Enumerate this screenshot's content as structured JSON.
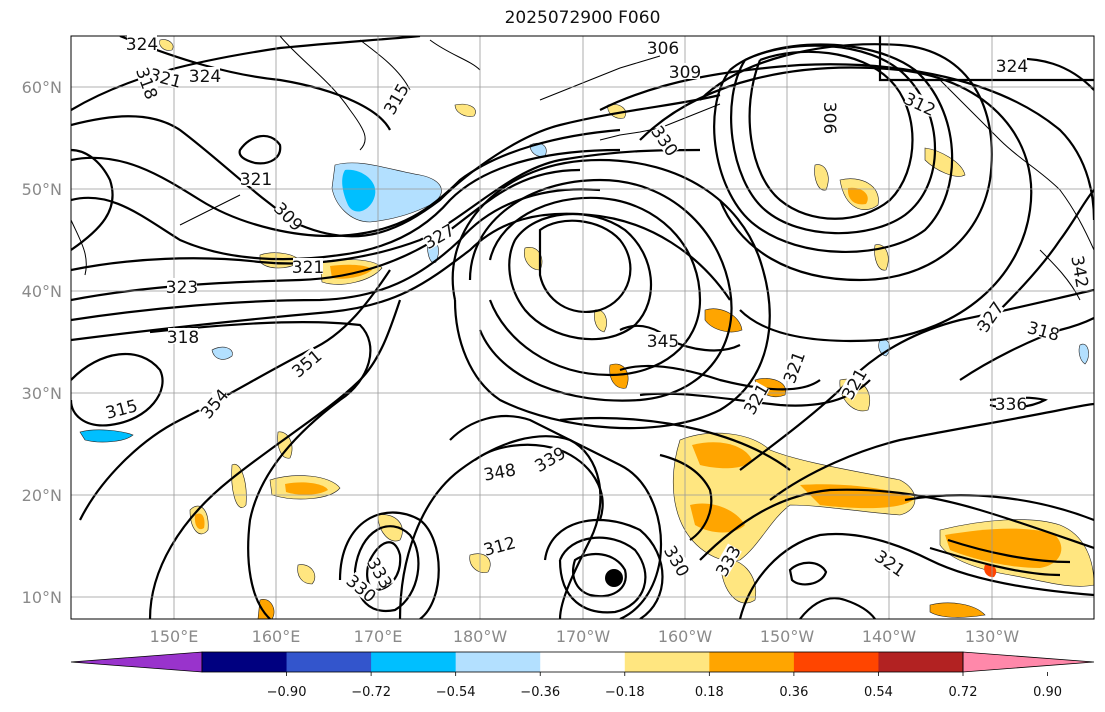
{
  "title": "2025072900 F060",
  "lat_ticks": [
    "10°N",
    "20°N",
    "30°N",
    "40°N",
    "50°N",
    "60°N"
  ],
  "lon_ticks": [
    "150°E",
    "160°E",
    "170°E",
    "180°W",
    "170°W",
    "160°W",
    "150°W",
    "140°W",
    "130°W"
  ],
  "colorbar": {
    "colors": [
      "#9933cc",
      "#000080",
      "#3355cc",
      "#00bfff",
      "#b3e0ff",
      "#ffffff",
      "#ffe680",
      "#ffa500",
      "#ff4500",
      "#b22222",
      "#ff88aa"
    ],
    "labels": [
      "−0.90",
      "−0.72",
      "−0.54",
      "−0.36",
      "−0.18",
      "0.18",
      "0.36",
      "0.54",
      "0.72",
      "0.90"
    ]
  },
  "contour_labels": [
    "324",
    "321",
    "324",
    "318",
    "315",
    "306",
    "309",
    "306",
    "312",
    "324",
    "321",
    "309",
    "321",
    "327",
    "323",
    "330",
    "318",
    "351",
    "345",
    "321",
    "321",
    "321",
    "327",
    "318",
    "315",
    "354",
    "348",
    "339",
    "336",
    "312",
    "333",
    "330",
    "333",
    "321",
    "342",
    "330"
  ],
  "marker": "low-center-dot"
}
